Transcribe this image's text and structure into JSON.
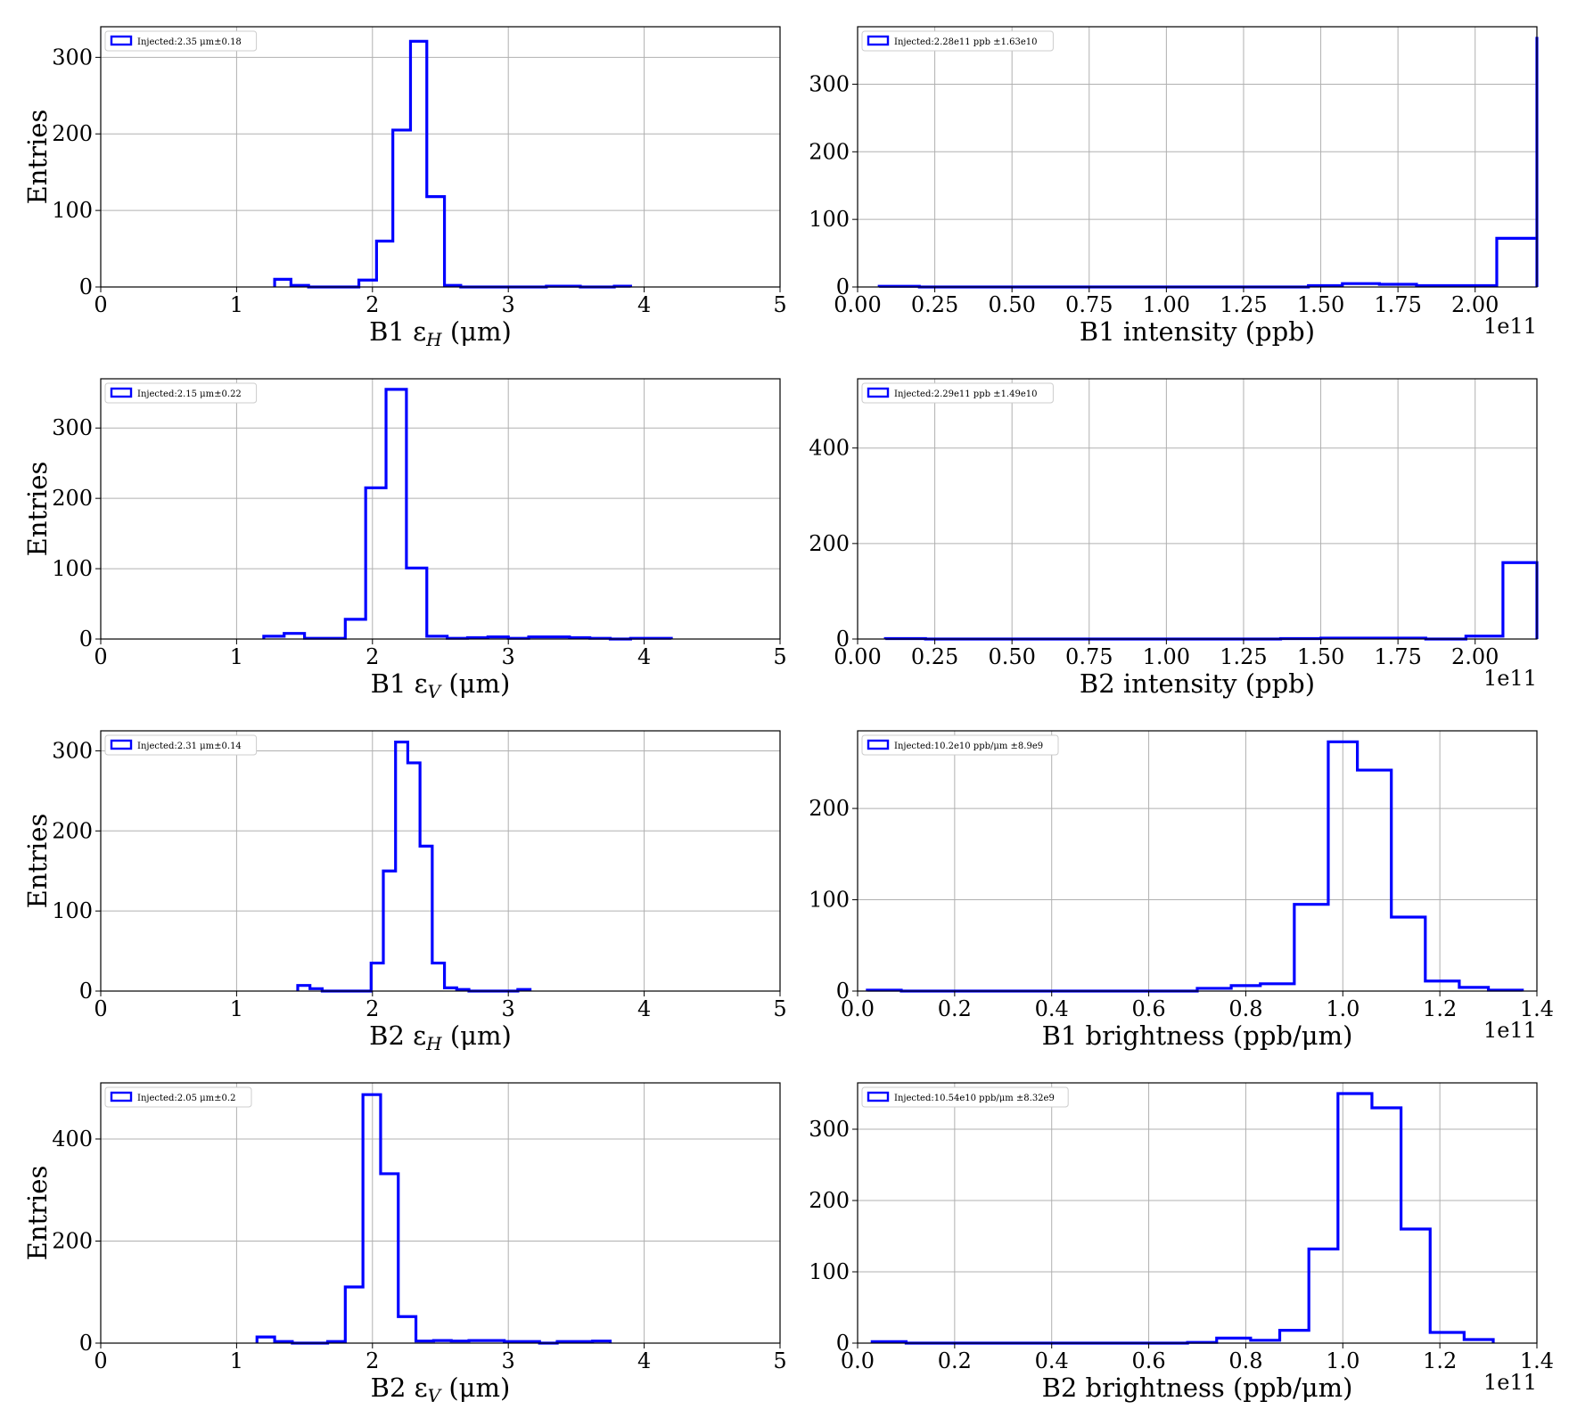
{
  "chart_data": [
    {
      "type": "histogram",
      "xlabel": "B1 εH (μm)",
      "xlabel_main": "B1 ε",
      "xlabel_sub": "H",
      "xlabel_unit": " (μm)",
      "ylabel": "Entries",
      "xlim": [
        0,
        5
      ],
      "ylim": [
        0,
        340
      ],
      "xticks": [
        0,
        1,
        2,
        3,
        4,
        5
      ],
      "xtick_labels": [
        "0",
        "1",
        "2",
        "3",
        "4",
        "5"
      ],
      "yticks": [
        0,
        100,
        200,
        300
      ],
      "ytick_labels": [
        "0",
        "100",
        "200",
        "300"
      ],
      "offset_label": "",
      "legend": "Injected:2.35 μm±0.18",
      "bins": [
        1.28,
        1.4,
        1.53,
        1.65,
        1.78,
        1.9,
        2.03,
        2.15,
        2.28,
        2.4,
        2.53,
        2.65,
        2.78,
        2.9,
        3.03,
        3.15,
        3.28,
        3.4,
        3.53,
        3.65,
        3.78,
        3.9
      ],
      "counts": [
        10,
        2,
        0,
        0,
        0,
        9,
        60,
        205,
        321,
        118,
        2,
        0,
        0,
        0,
        0,
        0,
        1,
        1,
        0,
        0,
        1
      ],
      "grid": true,
      "color": "#0000ff"
    },
    {
      "type": "histogram",
      "xlabel": "B1 intensity (ppb)",
      "xlabel_main": "B1 intensity (ppb)",
      "xlabel_sub": "",
      "xlabel_unit": "",
      "ylabel": "",
      "xlim": [
        0,
        2.2
      ],
      "ylim": [
        0,
        385
      ],
      "xticks": [
        0,
        0.25,
        0.5,
        0.75,
        1.0,
        1.25,
        1.5,
        1.75,
        2.0
      ],
      "xtick_labels": [
        "0.00",
        "0.25",
        "0.50",
        "0.75",
        "1.00",
        "1.25",
        "1.50",
        "1.75",
        "2.00"
      ],
      "yticks": [
        0,
        100,
        200,
        300
      ],
      "ytick_labels": [
        "0",
        "100",
        "200",
        "300"
      ],
      "offset_label": "1e11",
      "legend": "Injected:2.28e11 ppb ±1.63e10",
      "bins": [
        0.07,
        0.2,
        0.33,
        0.46,
        0.59,
        0.72,
        0.85,
        0.98,
        1.11,
        1.24,
        1.37,
        1.46,
        1.57,
        1.69,
        1.81,
        1.94,
        2.07,
        2.2
      ],
      "counts": [
        1,
        0,
        0,
        0,
        0,
        0,
        0,
        0,
        0,
        0,
        0,
        2,
        5,
        4,
        2,
        2,
        72
      ],
      "extra_bin": [
        2.2,
        2.22,
        370
      ],
      "grid": true,
      "color": "#0000ff"
    },
    {
      "type": "histogram",
      "xlabel": "B1 εV (μm)",
      "xlabel_main": "B1 ε",
      "xlabel_sub": "V",
      "xlabel_unit": " (μm)",
      "ylabel": "Entries",
      "xlim": [
        0,
        5
      ],
      "ylim": [
        0,
        370
      ],
      "xticks": [
        0,
        1,
        2,
        3,
        4,
        5
      ],
      "xtick_labels": [
        "0",
        "1",
        "2",
        "3",
        "4",
        "5"
      ],
      "yticks": [
        0,
        100,
        200,
        300
      ],
      "ytick_labels": [
        "0",
        "100",
        "200",
        "300"
      ],
      "offset_label": "",
      "legend": "Injected:2.15 μm±0.22",
      "bins": [
        1.2,
        1.35,
        1.5,
        1.65,
        1.8,
        1.95,
        2.1,
        2.25,
        2.4,
        2.55,
        2.7,
        2.85,
        3.0,
        3.15,
        3.3,
        3.45,
        3.6,
        3.75,
        3.9,
        4.05,
        4.2
      ],
      "counts": [
        4,
        8,
        1,
        1,
        28,
        215,
        355,
        101,
        4,
        1,
        2,
        3,
        1,
        3,
        3,
        2,
        1,
        0,
        1,
        1
      ],
      "grid": true,
      "color": "#0000ff"
    },
    {
      "type": "histogram",
      "xlabel": "B2 intensity (ppb)",
      "xlabel_main": "B2 intensity (ppb)",
      "xlabel_sub": "",
      "xlabel_unit": "",
      "ylabel": "",
      "xlim": [
        0,
        2.2
      ],
      "ylim": [
        0,
        545
      ],
      "xticks": [
        0,
        0.25,
        0.5,
        0.75,
        1.0,
        1.25,
        1.5,
        1.75,
        2.0
      ],
      "xtick_labels": [
        "0.00",
        "0.25",
        "0.50",
        "0.75",
        "1.00",
        "1.25",
        "1.50",
        "1.75",
        "2.00"
      ],
      "yticks": [
        0,
        200,
        400
      ],
      "ytick_labels": [
        "0",
        "200",
        "400"
      ],
      "offset_label": "1e11",
      "legend": "Injected:2.29e11 ppb ±1.49e10",
      "bins": [
        0.09,
        0.22,
        0.35,
        0.48,
        0.61,
        0.74,
        0.87,
        1.0,
        1.13,
        1.26,
        1.37,
        1.5,
        1.63,
        1.75,
        1.84,
        1.97,
        2.09,
        2.2
      ],
      "counts": [
        1,
        0,
        0,
        0,
        0,
        0,
        0,
        0,
        0,
        0,
        1,
        2,
        2,
        2,
        0,
        6,
        160
      ],
      "grid": true,
      "color": "#0000ff"
    },
    {
      "type": "histogram",
      "xlabel": "B2 εH (μm)",
      "xlabel_main": "B2 ε",
      "xlabel_sub": "H",
      "xlabel_unit": " (μm)",
      "ylabel": "Entries",
      "xlim": [
        0,
        5
      ],
      "ylim": [
        0,
        325
      ],
      "xticks": [
        0,
        1,
        2,
        3,
        4,
        5
      ],
      "xtick_labels": [
        "0",
        "1",
        "2",
        "3",
        "4",
        "5"
      ],
      "yticks": [
        0,
        100,
        200,
        300
      ],
      "ytick_labels": [
        "0",
        "100",
        "200",
        "300"
      ],
      "offset_label": "",
      "legend": "Injected:2.31 μm±0.14",
      "bins": [
        1.45,
        1.54,
        1.63,
        1.72,
        1.81,
        1.9,
        1.99,
        2.08,
        2.17,
        2.26,
        2.35,
        2.44,
        2.53,
        2.62,
        2.71,
        2.8,
        2.89,
        2.98,
        3.07,
        3.16
      ],
      "counts": [
        7,
        3,
        0,
        0,
        0,
        0,
        35,
        150,
        311,
        285,
        181,
        35,
        4,
        2,
        0,
        0,
        0,
        0,
        2
      ],
      "grid": true,
      "color": "#0000ff"
    },
    {
      "type": "histogram",
      "xlabel": "B1 brightness (ppb/μm)",
      "xlabel_main": "B1 brightness (ppb/",
      "xlabel_sub": "",
      "xlabel_unit": "",
      "xlabel_mu": true,
      "ylabel": "",
      "xlim": [
        0,
        1.4
      ],
      "ylim": [
        0,
        285
      ],
      "xticks": [
        0,
        0.2,
        0.4,
        0.6,
        0.8,
        1.0,
        1.2,
        1.4
      ],
      "xtick_labels": [
        "0.0",
        "0.2",
        "0.4",
        "0.6",
        "0.8",
        "1.0",
        "1.2",
        "1.4"
      ],
      "yticks": [
        0,
        100,
        200
      ],
      "ytick_labels": [
        "0",
        "100",
        "200"
      ],
      "offset_label": "1e11",
      "legend": "Injected:10.2e10 ppb/μm ±8.9e9",
      "bins": [
        0.02,
        0.09,
        0.16,
        0.22,
        0.29,
        0.36,
        0.43,
        0.5,
        0.56,
        0.63,
        0.7,
        0.77,
        0.83,
        0.9,
        0.97,
        1.03,
        1.1,
        1.17,
        1.24,
        1.3,
        1.37
      ],
      "counts": [
        1,
        0,
        0,
        0,
        0,
        0,
        0,
        0,
        0,
        0,
        3,
        6,
        8,
        95,
        273,
        242,
        81,
        11,
        4,
        1
      ],
      "grid": true,
      "color": "#0000ff"
    },
    {
      "type": "histogram",
      "xlabel": "B2 εV (μm)",
      "xlabel_main": "B2 ε",
      "xlabel_sub": "V",
      "xlabel_unit": " (μm)",
      "ylabel": "Entries",
      "xlim": [
        0,
        5
      ],
      "ylim": [
        0,
        510
      ],
      "xticks": [
        0,
        1,
        2,
        3,
        4,
        5
      ],
      "xtick_labels": [
        "0",
        "1",
        "2",
        "3",
        "4",
        "5"
      ],
      "yticks": [
        0,
        200,
        400
      ],
      "ytick_labels": [
        "0",
        "200",
        "400"
      ],
      "offset_label": "",
      "legend": "Injected:2.05 μm±0.2",
      "bins": [
        1.15,
        1.28,
        1.41,
        1.54,
        1.67,
        1.8,
        1.93,
        2.06,
        2.19,
        2.32,
        2.45,
        2.58,
        2.71,
        2.84,
        2.97,
        3.1,
        3.23,
        3.36,
        3.49,
        3.62,
        3.75
      ],
      "counts": [
        12,
        3,
        0,
        0,
        3,
        110,
        487,
        332,
        52,
        4,
        5,
        4,
        5,
        5,
        3,
        3,
        0,
        3,
        3,
        4
      ],
      "grid": true,
      "color": "#0000ff"
    },
    {
      "type": "histogram",
      "xlabel": "B2 brightness (ppb/μm)",
      "xlabel_main": "B2 brightness (ppb/",
      "xlabel_sub": "",
      "xlabel_unit": "",
      "xlabel_mu": true,
      "ylabel": "",
      "xlim": [
        0,
        1.4
      ],
      "ylim": [
        0,
        365
      ],
      "xticks": [
        0,
        0.2,
        0.4,
        0.6,
        0.8,
        1.0,
        1.2,
        1.4
      ],
      "xtick_labels": [
        "0.0",
        "0.2",
        "0.4",
        "0.6",
        "0.8",
        "1.0",
        "1.2",
        "1.4"
      ],
      "yticks": [
        0,
        100,
        200,
        300
      ],
      "ytick_labels": [
        "0",
        "100",
        "200",
        "300"
      ],
      "offset_label": "1e11",
      "legend": "Injected:10.54e10 ppb/μm ±8.32e9",
      "bins": [
        0.03,
        0.1,
        0.16,
        0.23,
        0.29,
        0.36,
        0.42,
        0.49,
        0.55,
        0.62,
        0.68,
        0.74,
        0.81,
        0.87,
        0.93,
        0.99,
        1.06,
        1.12,
        1.18,
        1.25,
        1.31
      ],
      "counts": [
        2,
        0,
        0,
        0,
        0,
        0,
        0,
        0,
        0,
        0,
        1,
        7,
        4,
        18,
        132,
        350,
        330,
        160,
        15,
        5
      ],
      "grid": true,
      "color": "#0000ff"
    }
  ]
}
